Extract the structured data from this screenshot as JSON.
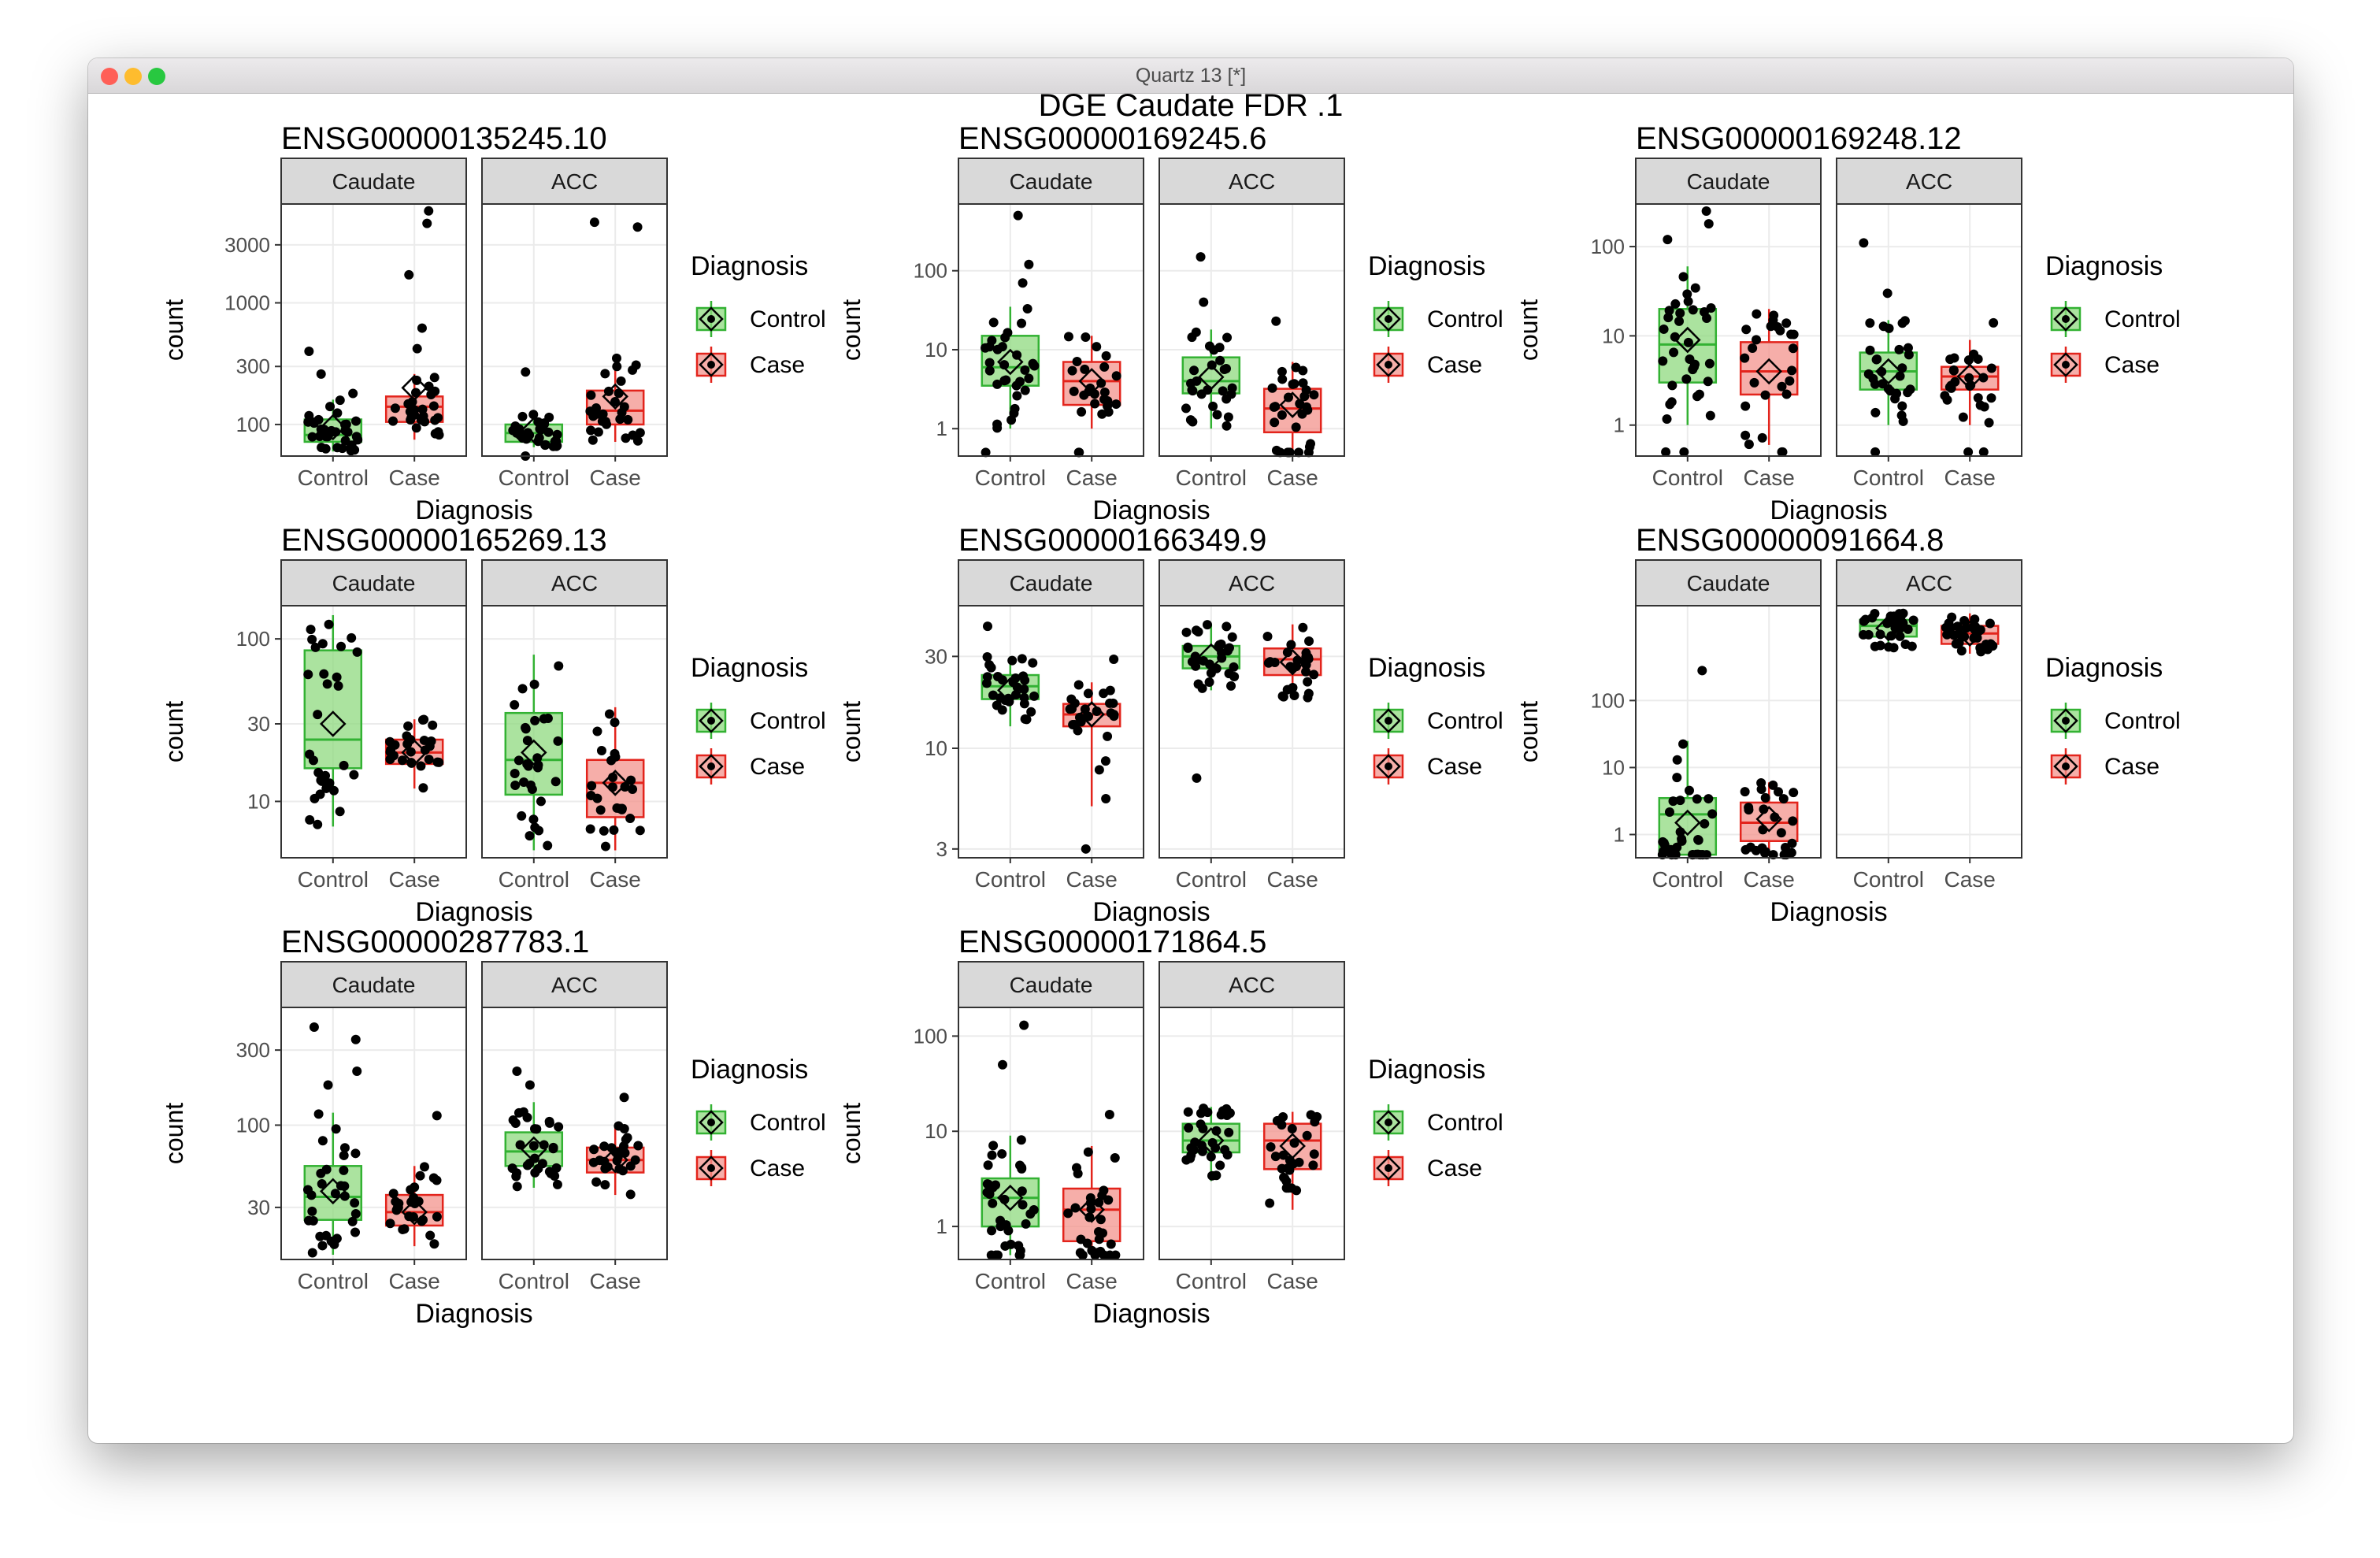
{
  "window": {
    "title": "Quartz 13 [*]"
  },
  "traffic_lights": {
    "close": "#ff5f57",
    "minimize": "#febc2e",
    "zoom": "#28c840"
  },
  "colors": {
    "control_fill": "#8fd97f",
    "control_stroke": "#33b233",
    "case_fill": "#f3938c",
    "case_stroke": "#e3241c",
    "strip_bg": "#d9d9d9",
    "grid": "#ebebeb",
    "point": "#000000"
  },
  "chart_data": {
    "title": "DGE Caudate FDR .1",
    "type": "box",
    "x_label": "Diagnosis",
    "y_label": "count",
    "y_scale": "log10",
    "groups": [
      "Control",
      "Case"
    ],
    "facets": [
      "Caudate",
      "ACC"
    ],
    "legend": {
      "title": "Diagnosis",
      "position": "right",
      "items": [
        "Control",
        "Case"
      ]
    },
    "panels": [
      {
        "gene": "ENSG00000135245.10",
        "ylim": [
          55,
          6500
        ],
        "ticks": [
          {
            "v": 100,
            "label": "100"
          },
          {
            "v": 300,
            "label": "300"
          },
          {
            "v": 1000,
            "label": "1000"
          },
          {
            "v": 3000,
            "label": "3000"
          }
        ],
        "facet_data": [
          [
            {
              "q1": 72,
              "med": 82,
              "q3": 110,
              "lo": 60,
              "hi": 160,
              "mean": 95,
              "n": 34,
              "pts": [
                180,
                260,
                400
              ]
            },
            {
              "q1": 105,
              "med": 140,
              "q3": 170,
              "lo": 75,
              "hi": 260,
              "mean": 200,
              "n": 26,
              "pts": [
                420,
                620,
                1700,
                4500,
                5700
              ]
            }
          ],
          [
            {
              "q1": 72,
              "med": 85,
              "q3": 100,
              "lo": 65,
              "hi": 130,
              "mean": 90,
              "n": 30,
              "pts": [
                55,
                270
              ]
            },
            {
              "q1": 100,
              "med": 130,
              "q3": 190,
              "lo": 72,
              "hi": 320,
              "mean": 170,
              "n": 28,
              "pts": [
                350,
                4200,
                4600
              ]
            }
          ]
        ]
      },
      {
        "gene": "ENSG00000169245.6",
        "ylim": [
          0.45,
          700
        ],
        "ticks": [
          {
            "v": 1,
            "label": "1"
          },
          {
            "v": 10,
            "label": "10"
          },
          {
            "v": 100,
            "label": "100"
          }
        ],
        "facet_data": [
          [
            {
              "q1": 3.5,
              "med": 6,
              "q3": 15,
              "lo": 1,
              "hi": 35,
              "mean": 7,
              "n": 30,
              "pts": [
                0.5,
                70,
                120,
                500
              ]
            },
            {
              "q1": 2,
              "med": 4,
              "q3": 7,
              "lo": 1,
              "hi": 15,
              "mean": 4,
              "n": 24,
              "pts": [
                0.5,
                0.5
              ]
            }
          ],
          [
            {
              "q1": 2.8,
              "med": 4,
              "q3": 8,
              "lo": 1,
              "hi": 18,
              "mean": 4.5,
              "n": 28,
              "pts": [
                40,
                150
              ]
            },
            {
              "q1": 0.9,
              "med": 1.8,
              "q3": 3.2,
              "lo": 0.5,
              "hi": 7,
              "mean": 2,
              "n": 24,
              "pts": [
                0.5,
                0.5,
                0.5,
                0.5,
                0.5,
                0.5,
                23
              ]
            }
          ]
        ]
      },
      {
        "gene": "ENSG00000169248.12",
        "ylim": [
          0.45,
          300
        ],
        "ticks": [
          {
            "v": 1,
            "label": "1"
          },
          {
            "v": 10,
            "label": "10"
          },
          {
            "v": 100,
            "label": "100"
          }
        ],
        "facet_data": [
          [
            {
              "q1": 3,
              "med": 8,
              "q3": 20,
              "lo": 1,
              "hi": 60,
              "mean": 9,
              "n": 32,
              "pts": [
                0.5,
                0.5,
                120,
                180,
                250
              ]
            },
            {
              "q1": 2.2,
              "med": 4,
              "q3": 8.5,
              "lo": 0.6,
              "hi": 20,
              "mean": 4,
              "n": 24,
              "pts": [
                0.5,
                0.5
              ]
            }
          ],
          [
            {
              "q1": 2.5,
              "med": 4,
              "q3": 6.5,
              "lo": 1,
              "hi": 15,
              "mean": 4,
              "n": 28,
              "pts": [
                0.5,
                30,
                110
              ]
            },
            {
              "q1": 2.5,
              "med": 3.5,
              "q3": 4.5,
              "lo": 1,
              "hi": 9,
              "mean": 3.5,
              "n": 24,
              "pts": [
                0.5,
                0.5,
                14
              ]
            }
          ]
        ]
      },
      {
        "gene": "ENSG00000165269.13",
        "ylim": [
          4.5,
          160
        ],
        "ticks": [
          {
            "v": 10,
            "label": "10"
          },
          {
            "v": 30,
            "label": "30"
          },
          {
            "v": 100,
            "label": "100"
          }
        ],
        "facet_data": [
          [
            {
              "q1": 16,
              "med": 24,
              "q3": 85,
              "lo": 7,
              "hi": 140,
              "mean": 30,
              "n": 30,
              "pts": []
            },
            {
              "q1": 17,
              "med": 20,
              "q3": 24,
              "lo": 12,
              "hi": 32,
              "mean": 20,
              "n": 26,
              "pts": []
            }
          ],
          [
            {
              "q1": 11,
              "med": 18,
              "q3": 35,
              "lo": 5,
              "hi": 80,
              "mean": 20,
              "n": 30,
              "pts": []
            },
            {
              "q1": 8,
              "med": 13,
              "q3": 18,
              "lo": 5,
              "hi": 38,
              "mean": 13,
              "n": 26,
              "pts": []
            }
          ]
        ]
      },
      {
        "gene": "ENSG00000166349.9",
        "ylim": [
          2.7,
          55
        ],
        "ticks": [
          {
            "v": 3,
            "label": "3"
          },
          {
            "v": 10,
            "label": "10"
          },
          {
            "v": 30,
            "label": "30"
          }
        ],
        "facet_data": [
          [
            {
              "q1": 18,
              "med": 21,
              "q3": 24,
              "lo": 13,
              "hi": 30,
              "mean": 20,
              "n": 30,
              "pts": [
                43
              ]
            },
            {
              "q1": 13,
              "med": 15,
              "q3": 17,
              "lo": 5,
              "hi": 22,
              "mean": 15,
              "n": 26,
              "pts": [
                3,
                29
              ]
            }
          ],
          [
            {
              "q1": 26,
              "med": 30,
              "q3": 34,
              "lo": 20,
              "hi": 44,
              "mean": 30,
              "n": 30,
              "pts": [
                7
              ]
            },
            {
              "q1": 24,
              "med": 29,
              "q3": 33,
              "lo": 18,
              "hi": 44,
              "mean": 28,
              "n": 28,
              "pts": []
            }
          ]
        ]
      },
      {
        "gene": "ENSG00000091664.8",
        "ylim": [
          0.45,
          2600
        ],
        "ticks": [
          {
            "v": 1,
            "label": "1"
          },
          {
            "v": 10,
            "label": "10"
          },
          {
            "v": 100,
            "label": "100"
          }
        ],
        "facet_data": [
          [
            {
              "q1": 0.5,
              "med": 2,
              "q3": 3.5,
              "lo": 0.5,
              "hi": 25,
              "mean": 1.5,
              "n": 30,
              "pts": [
                0.5,
                0.5,
                0.5,
                0.5,
                0.5,
                0.5,
                280
              ]
            },
            {
              "q1": 0.8,
              "med": 1.5,
              "q3": 3,
              "lo": 0.5,
              "hi": 6,
              "mean": 1.7,
              "n": 24,
              "pts": [
                0.5,
                0.5,
                0.5,
                0.5
              ]
            }
          ],
          [
            {
              "q1": 900,
              "med": 1300,
              "q3": 1600,
              "lo": 600,
              "hi": 2000,
              "mean": 1200,
              "n": 30,
              "pts": []
            },
            {
              "q1": 700,
              "med": 1000,
              "q3": 1300,
              "lo": 500,
              "hi": 2000,
              "mean": 1000,
              "n": 30,
              "pts": []
            }
          ]
        ]
      },
      {
        "gene": "ENSG00000287783.1",
        "ylim": [
          14,
          560
        ],
        "ticks": [
          {
            "v": 30,
            "label": "30"
          },
          {
            "v": 100,
            "label": "100"
          },
          {
            "v": 300,
            "label": "300"
          }
        ],
        "facet_data": [
          [
            {
              "q1": 25,
              "med": 35,
              "q3": 55,
              "lo": 15,
              "hi": 120,
              "mean": 38,
              "n": 30,
              "pts": [
                180,
                220,
                350,
                420
              ]
            },
            {
              "q1": 23,
              "med": 28,
              "q3": 36,
              "lo": 17,
              "hi": 55,
              "mean": 28,
              "n": 26,
              "pts": [
                115
              ]
            }
          ],
          [
            {
              "q1": 55,
              "med": 68,
              "q3": 90,
              "lo": 40,
              "hi": 140,
              "mean": 70,
              "n": 30,
              "pts": [
                180,
                220
              ]
            },
            {
              "q1": 50,
              "med": 60,
              "q3": 72,
              "lo": 36,
              "hi": 100,
              "mean": 60,
              "n": 26,
              "pts": [
                150
              ]
            }
          ]
        ]
      },
      {
        "gene": "ENSG00000171864.5",
        "ylim": [
          0.45,
          200
        ],
        "ticks": [
          {
            "v": 1,
            "label": "1"
          },
          {
            "v": 10,
            "label": "10"
          },
          {
            "v": 100,
            "label": "100"
          }
        ],
        "facet_data": [
          [
            {
              "q1": 1,
              "med": 2,
              "q3": 3.2,
              "lo": 0.5,
              "hi": 9,
              "mean": 2,
              "n": 30,
              "pts": [
                0.5,
                0.5,
                0.5,
                0.5,
                0.5,
                50,
                130
              ]
            },
            {
              "q1": 0.7,
              "med": 1.5,
              "q3": 2.5,
              "lo": 0.5,
              "hi": 7,
              "mean": 1.5,
              "n": 26,
              "pts": [
                0.5,
                0.5,
                0.5,
                0.5,
                0.5,
                15
              ]
            }
          ],
          [
            {
              "q1": 6,
              "med": 8,
              "q3": 12,
              "lo": 3,
              "hi": 18,
              "mean": 8,
              "n": 30,
              "pts": []
            },
            {
              "q1": 4,
              "med": 8,
              "q3": 12,
              "lo": 1.5,
              "hi": 16,
              "mean": 7,
              "n": 28,
              "pts": []
            }
          ]
        ]
      }
    ]
  }
}
